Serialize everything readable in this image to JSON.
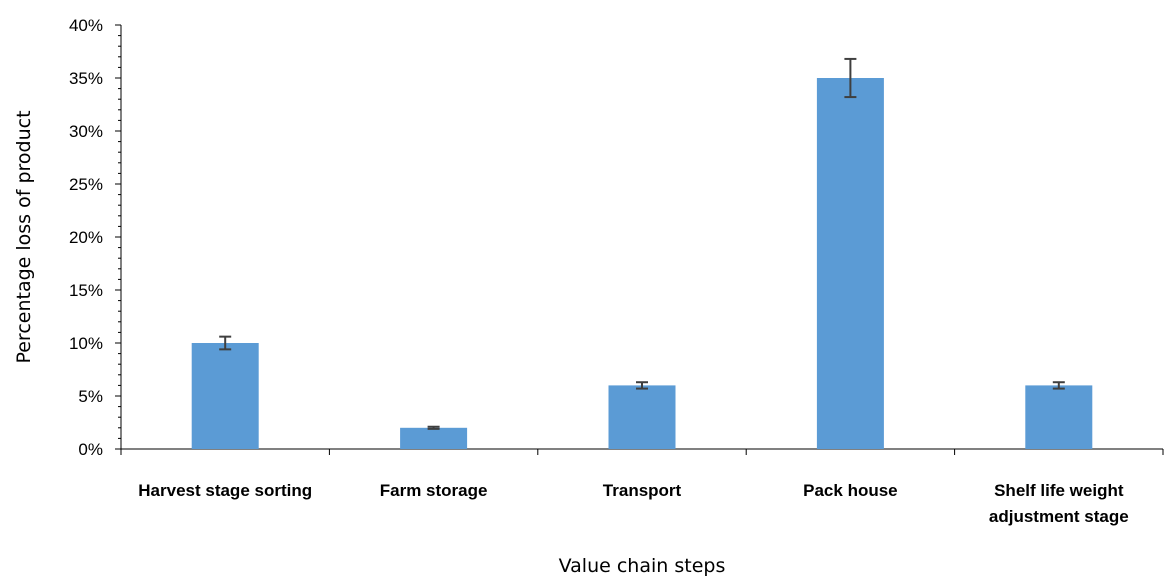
{
  "chart_data": {
    "type": "bar",
    "title": "",
    "xlabel": "Value chain steps",
    "ylabel": "Percentage loss of product",
    "ylim": [
      0,
      40
    ],
    "y_unit": "%",
    "y_ticks": [
      "0%",
      "5%",
      "10%",
      "15%",
      "20%",
      "25%",
      "30%",
      "35%",
      "40%"
    ],
    "categories": [
      [
        "Harvest stage sorting"
      ],
      [
        "Farm storage"
      ],
      [
        "Transport"
      ],
      [
        "Pack house"
      ],
      [
        "Shelf life weight",
        "adjustment stage"
      ]
    ],
    "values": [
      10,
      2,
      6,
      35,
      6
    ],
    "error": [
      0.6,
      0.1,
      0.3,
      1.8,
      0.3
    ],
    "bar_color": "#5b9bd5",
    "error_color": "#3f3f3f",
    "grid": false,
    "legend": "none"
  }
}
